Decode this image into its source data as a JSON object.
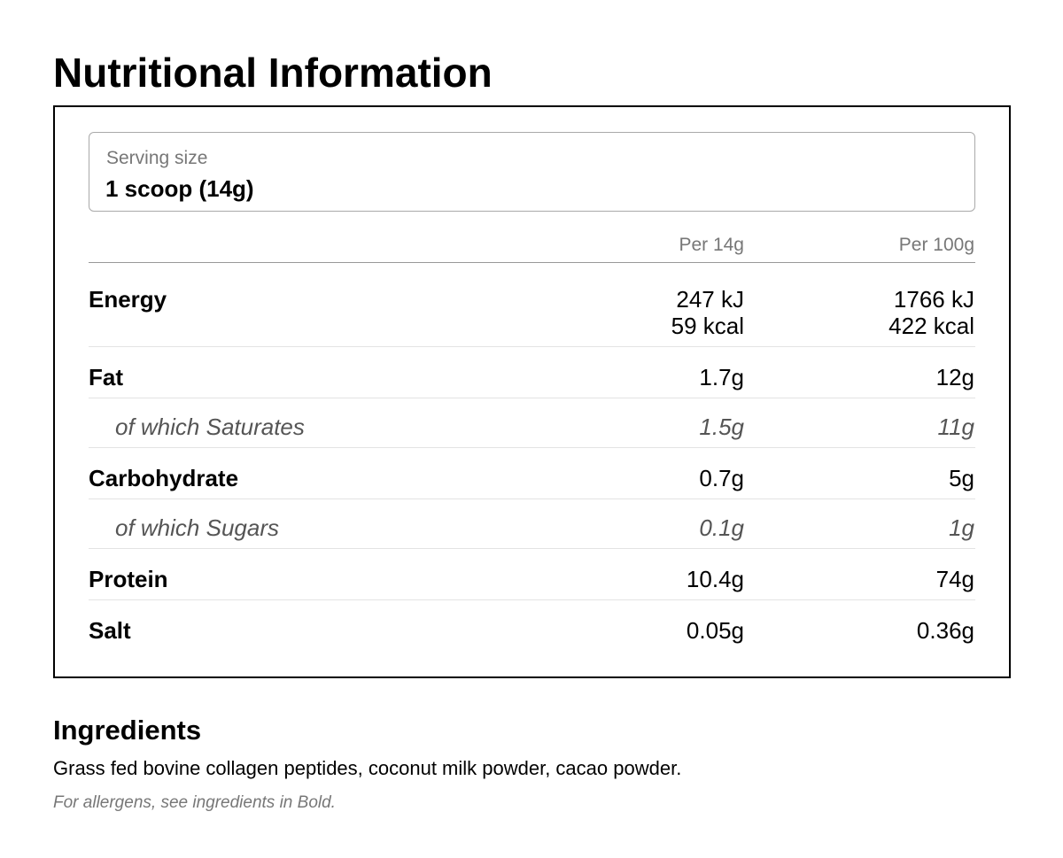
{
  "header": {
    "title": "Nutritional Information"
  },
  "serving": {
    "label": "Serving size",
    "value": "1 scoop (14g)"
  },
  "table": {
    "columns": [
      "Per 14g",
      "Per 100g"
    ],
    "rows": [
      [
        "Energy",
        [
          "247 kJ",
          "59 kcal"
        ],
        [
          "1766 kJ",
          "422 kcal"
        ]
      ],
      [
        "Fat",
        [
          "1.7g"
        ],
        [
          "12g"
        ]
      ],
      [
        "of which Saturates",
        [
          "1.5g"
        ],
        [
          "11g"
        ]
      ],
      [
        "Carbohydrate",
        [
          "0.7g"
        ],
        [
          "5g"
        ]
      ],
      [
        "of which Sugars",
        [
          "0.1g"
        ],
        [
          "1g"
        ]
      ],
      [
        "Protein",
        [
          "10.4g"
        ],
        [
          "74g"
        ]
      ],
      [
        "Salt",
        [
          "0.05g"
        ],
        [
          "0.36g"
        ]
      ]
    ]
  },
  "ingredients": {
    "title": "Ingredients",
    "text": "Grass fed bovine collagen peptides, coconut milk powder, cacao powder.",
    "note": "For allergens, see ingredients in Bold."
  }
}
